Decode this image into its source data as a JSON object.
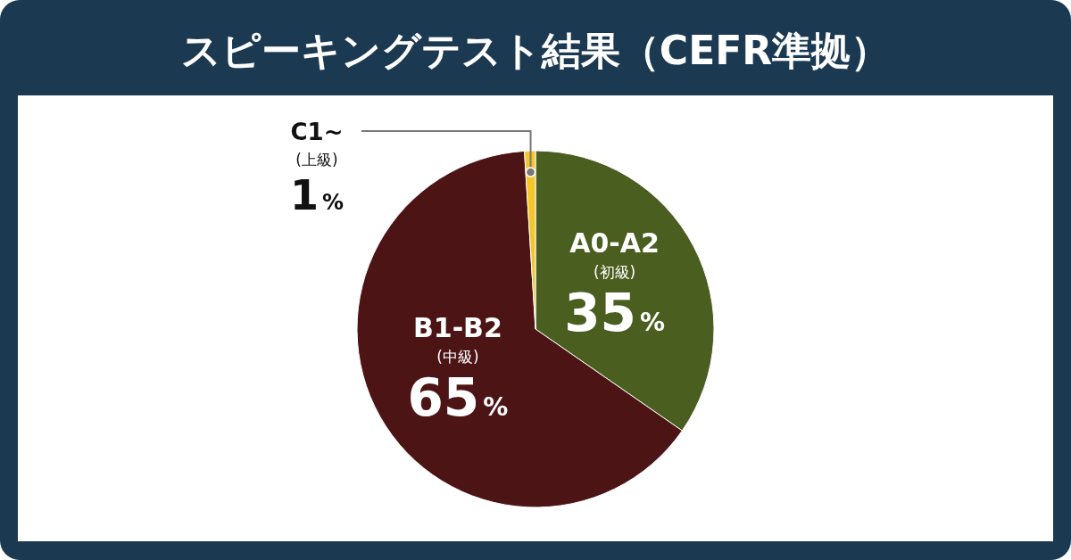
{
  "chart_data": {
    "type": "pie",
    "title": "スピーキングテスト結果（CEFR準拠）",
    "categories": [
      "A0-A2 (初級)",
      "B1-B2 (中級)",
      "C1~ (上級)"
    ],
    "values": [
      35,
      65,
      1
    ],
    "value_labels": [
      "35%",
      "65%",
      "1%"
    ],
    "colors": [
      "#4a5e20",
      "#4d1416",
      "#f5c62a"
    ]
  }
}
